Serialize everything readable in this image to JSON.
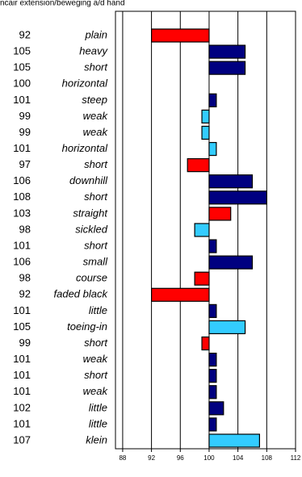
{
  "chart_data": {
    "type": "bar",
    "orientation": "horizontal",
    "title": "ncair extension/beweging a/d hand",
    "base": 100,
    "categories": [
      "plain",
      "heavy",
      "short",
      "horizontal",
      "steep",
      "weak",
      "weak",
      "horizontal",
      "short",
      "downhill",
      "short",
      "straight",
      "sickled",
      "short",
      "small",
      "course",
      "faded black",
      "little",
      "toeing-in",
      "short",
      "weak",
      "short",
      "weak",
      "little",
      "little",
      "klein"
    ],
    "values": [
      92,
      105,
      105,
      100,
      101,
      99,
      99,
      101,
      97,
      106,
      108,
      103,
      98,
      101,
      106,
      98,
      92,
      101,
      105,
      99,
      101,
      101,
      101,
      102,
      101,
      107
    ],
    "colors": [
      "#ff0000",
      "#000080",
      "#000080",
      "#000080",
      "#000080",
      "#33ccff",
      "#33ccff",
      "#33ccff",
      "#ff0000",
      "#000080",
      "#000080",
      "#ff0000",
      "#33ccff",
      "#000080",
      "#000080",
      "#ff0000",
      "#ff0000",
      "#000080",
      "#33ccff",
      "#ff0000",
      "#000080",
      "#000080",
      "#000080",
      "#000080",
      "#000080",
      "#33ccff"
    ],
    "xlim": [
      87,
      112
    ],
    "xticks": [
      88,
      92,
      96,
      100,
      104,
      108,
      112
    ],
    "grid": true
  }
}
